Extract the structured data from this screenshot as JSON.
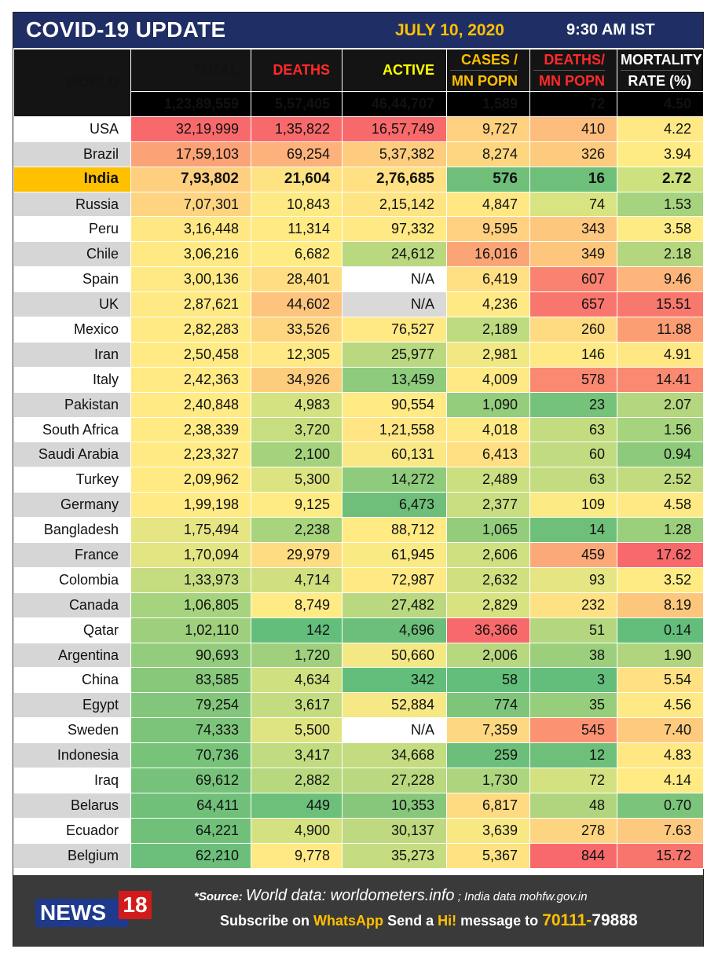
{
  "header": {
    "title": "COVID-19 UPDATE",
    "date": "JULY 10, 2020",
    "time": "9:30 AM IST"
  },
  "columns": {
    "world": "WORLD",
    "total": "TOTAL",
    "deaths": "DEATHS",
    "active": "ACTIVE",
    "cases_mn_1": "CASES /",
    "cases_mn_2": "MN POPN",
    "deaths_mn_1": "DEATHS/",
    "deaths_mn_2": "MN POPN",
    "mort_1": "MORTALITY",
    "mort_2": "RATE (%)"
  },
  "column_colors": {
    "gold": "#ffc000",
    "red": "#ff2a2a",
    "yellow": "#ffff00",
    "white": "#ffffff"
  },
  "world": [
    "1,23,89,559",
    "5,57,405",
    "46,44,707",
    "1,589",
    "72",
    "4.50"
  ],
  "rows": [
    {
      "country": "USA",
      "values": [
        "32,19,999",
        "1,35,822",
        "16,57,749",
        "9,727",
        "410",
        "4.22"
      ],
      "colors": [
        "#f8696b",
        "#f8696b",
        "#f8696b",
        "#fed07f",
        "#fdbd7c",
        "#ffe984"
      ]
    },
    {
      "country": "Brazil",
      "values": [
        "17,59,103",
        "69,254",
        "5,37,382",
        "8,274",
        "326",
        "3.94"
      ],
      "colors": [
        "#fba276",
        "#fcb27a",
        "#fdcc7f",
        "#fed680",
        "#fdcb7e",
        "#ffeb84"
      ]
    },
    {
      "country": "India",
      "values": [
        "7,93,802",
        "21,604",
        "2,76,685",
        "576",
        "16",
        "2.72"
      ],
      "colors": [
        "#fecf7f",
        "#ffe383",
        "#ffe082",
        "#6fbf7a",
        "#6dbf7a",
        "#cde27f"
      ]
    },
    {
      "country": "Russia",
      "values": [
        "7,07,301",
        "10,843",
        "2,15,142",
        "4,847",
        "74",
        "1.53"
      ],
      "colors": [
        "#fed480",
        "#feea84",
        "#ffe483",
        "#ffe884",
        "#d8e381",
        "#a6d37d"
      ]
    },
    {
      "country": "Peru",
      "values": [
        "3,16,448",
        "11,314",
        "97,332",
        "9,595",
        "343",
        "3.58"
      ],
      "colors": [
        "#ffe884",
        "#ffea84",
        "#ffe984",
        "#fed07f",
        "#fdc77d",
        "#ffeb84"
      ]
    },
    {
      "country": "Chile",
      "values": [
        "3,06,216",
        "6,682",
        "24,612",
        "16,016",
        "349",
        "2.18"
      ],
      "colors": [
        "#ffe984",
        "#ffeb84",
        "#b9d87f",
        "#fba576",
        "#fdc67d",
        "#b4d67e"
      ]
    },
    {
      "country": "Spain",
      "values": [
        "3,00,136",
        "28,401",
        "N/A",
        "6,419",
        "607",
        "9.46"
      ],
      "colors": [
        "#ffe984",
        "#ffdd82",
        "#ffffff",
        "#ffdf82",
        "#fa8270",
        "#fdb57b"
      ]
    },
    {
      "country": "UK",
      "values": [
        "2,87,621",
        "44,602",
        "N/A",
        "4,236",
        "657",
        "15.51"
      ],
      "colors": [
        "#ffe984",
        "#fdc47d",
        "#d9d9d9",
        "#ffe984",
        "#f9766e",
        "#f8786d"
      ]
    },
    {
      "country": "Mexico",
      "values": [
        "2,82,283",
        "33,526",
        "76,527",
        "2,189",
        "260",
        "11.88"
      ],
      "colors": [
        "#ffea84",
        "#fed680",
        "#ffe984",
        "#bfdb80",
        "#feda81",
        "#fc9e74"
      ]
    },
    {
      "country": "Iran",
      "values": [
        "2,50,458",
        "12,305",
        "25,977",
        "2,981",
        "146",
        "4.91"
      ],
      "colors": [
        "#ffea84",
        "#ffe984",
        "#b9d87f",
        "#f1e883",
        "#ffe984",
        "#ffe884"
      ]
    },
    {
      "country": "Italy",
      "values": [
        "2,42,363",
        "34,926",
        "13,459",
        "4,009",
        "578",
        "14.41"
      ],
      "colors": [
        "#ffea84",
        "#fdcd7e",
        "#8fcb7c",
        "#ffe984",
        "#fa8971",
        "#f98a71"
      ]
    },
    {
      "country": "Pakistan",
      "values": [
        "2,40,848",
        "4,983",
        "90,554",
        "1,090",
        "23",
        "2.07"
      ],
      "colors": [
        "#ffea84",
        "#d5e281",
        "#ffea84",
        "#94cd7c",
        "#75c27a",
        "#b4d67e"
      ]
    },
    {
      "country": "South Africa",
      "values": [
        "2,38,339",
        "3,720",
        "1,21,558",
        "4,018",
        "63",
        "1.56"
      ],
      "colors": [
        "#ffea84",
        "#c6dd80",
        "#ffe583",
        "#ffe984",
        "#c4dc80",
        "#a6d37d"
      ]
    },
    {
      "country": "Saudi Arabia",
      "values": [
        "2,23,327",
        "2,100",
        "60,131",
        "6,413",
        "60",
        "0.94"
      ],
      "colors": [
        "#ffea84",
        "#a5d27d",
        "#f9e884",
        "#ffdf82",
        "#c1db80",
        "#8dca7b"
      ]
    },
    {
      "country": "Turkey",
      "values": [
        "2,09,962",
        "5,300",
        "14,272",
        "2,489",
        "63",
        "2.52"
      ],
      "colors": [
        "#ffea84",
        "#dce381",
        "#8fcb7c",
        "#ccdf80",
        "#c4dc80",
        "#c2db7f"
      ]
    },
    {
      "country": "Germany",
      "values": [
        "1,99,198",
        "9,125",
        "6,473",
        "2,377",
        "109",
        "4.58"
      ],
      "colors": [
        "#ffea84",
        "#ffeb84",
        "#6fbf7a",
        "#c9de80",
        "#fcea84",
        "#ffe984"
      ]
    },
    {
      "country": "Bangladesh",
      "values": [
        "1,75,494",
        "2,238",
        "88,712",
        "1,065",
        "14",
        "1.28"
      ],
      "colors": [
        "#e6e583",
        "#a8d47d",
        "#ffea84",
        "#93cd7c",
        "#6ebf7a",
        "#9ccf7c"
      ]
    },
    {
      "country": "France",
      "values": [
        "1,70,094",
        "29,979",
        "61,945",
        "2,606",
        "459",
        "17.62"
      ],
      "colors": [
        "#e3e482",
        "#fedc81",
        "#faea84",
        "#cfe081",
        "#fca97a",
        "#f8696b"
      ]
    },
    {
      "country": "Colombia",
      "values": [
        "1,33,973",
        "4,714",
        "72,987",
        "2,632",
        "93",
        "3.52"
      ],
      "colors": [
        "#c5dd80",
        "#d0e081",
        "#ffe984",
        "#d0e081",
        "#e6e583",
        "#ffeb84"
      ]
    },
    {
      "country": "Canada",
      "values": [
        "1,06,805",
        "8,749",
        "27,482",
        "2,829",
        "232",
        "8.19"
      ],
      "colors": [
        "#a6d37d",
        "#ffeb84",
        "#bad87f",
        "#d9e281",
        "#fee182",
        "#fdc67d"
      ]
    },
    {
      "country": "Qatar",
      "values": [
        "1,02,110",
        "142",
        "4,696",
        "36,366",
        "51",
        "0.14"
      ],
      "colors": [
        "#9ecf7c",
        "#63be7b",
        "#6bbf7a",
        "#f8696b",
        "#b4d67e",
        "#63be7b"
      ]
    },
    {
      "country": "Argentina",
      "values": [
        "90,693",
        "1,720",
        "50,660",
        "2,006",
        "38",
        "1.90"
      ],
      "colors": [
        "#92cc7c",
        "#a0d07d",
        "#f4e884",
        "#b8d87f",
        "#9ccf7c",
        "#b0d57e"
      ]
    },
    {
      "country": "China",
      "values": [
        "83,585",
        "4,634",
        "342",
        "58",
        "3",
        "5.54"
      ],
      "colors": [
        "#88c87b",
        "#cfe081",
        "#63be7b",
        "#63be7b",
        "#63be7b",
        "#ffe183"
      ]
    },
    {
      "country": "Egypt",
      "values": [
        "79,254",
        "3,617",
        "52,884",
        "774",
        "35",
        "4.56"
      ],
      "colors": [
        "#82c67b",
        "#c4dc80",
        "#f6e884",
        "#7ec57b",
        "#97ce7c",
        "#ffe984"
      ]
    },
    {
      "country": "Sweden",
      "values": [
        "74,333",
        "5,500",
        "N/A",
        "7,359",
        "545",
        "7.40"
      ],
      "colors": [
        "#7dc47b",
        "#dfe482",
        "#ffffff",
        "#fed881",
        "#fb9373",
        "#fecb7e"
      ]
    },
    {
      "country": "Indonesia",
      "values": [
        "70,736",
        "3,417",
        "34,668",
        "259",
        "12",
        "4.83"
      ],
      "colors": [
        "#78c37a",
        "#c1db80",
        "#c4dc80",
        "#6bbf7a",
        "#6dbf7a",
        "#ffe884"
      ]
    },
    {
      "country": "Iraq",
      "values": [
        "69,612",
        "2,882",
        "27,228",
        "1,730",
        "72",
        "4.14"
      ],
      "colors": [
        "#77c27a",
        "#b8d87f",
        "#bad87f",
        "#acd57e",
        "#d3e181",
        "#ffea84"
      ]
    },
    {
      "country": "Belarus",
      "values": [
        "64,411",
        "449",
        "10,353",
        "6,817",
        "48",
        "0.70"
      ],
      "colors": [
        "#70c07a",
        "#6cc07a",
        "#86c77b",
        "#fedb81",
        "#b0d57e",
        "#7bc47b"
      ]
    },
    {
      "country": "Ecuador",
      "values": [
        "64,221",
        "4,900",
        "30,137",
        "3,639",
        "278",
        "7.63"
      ],
      "colors": [
        "#70c07a",
        "#d3e181",
        "#bed97f",
        "#f7e884",
        "#fdd47f",
        "#fdc97e"
      ]
    },
    {
      "country": "Belgium",
      "values": [
        "62,210",
        "9,778",
        "35,273",
        "5,367",
        "844",
        "15.72"
      ],
      "colors": [
        "#6cbf7a",
        "#ffe984",
        "#c5dd80",
        "#ffe383",
        "#f8696b",
        "#f8756d"
      ]
    }
  ],
  "footer": {
    "logo_news": "NEWS",
    "logo_18": "18",
    "source_label": "*Source:",
    "source_world": "World data: worldometers.info",
    "source_sep": ";",
    "source_india": "India data mohfw.gov.in",
    "sub_1": "Subscribe on",
    "sub_whatsapp": "WhatsApp",
    "sub_2": "Send a",
    "sub_hi": "Hi!",
    "sub_3": "message to",
    "phone_a": "70111-",
    "phone_b": "79888"
  }
}
